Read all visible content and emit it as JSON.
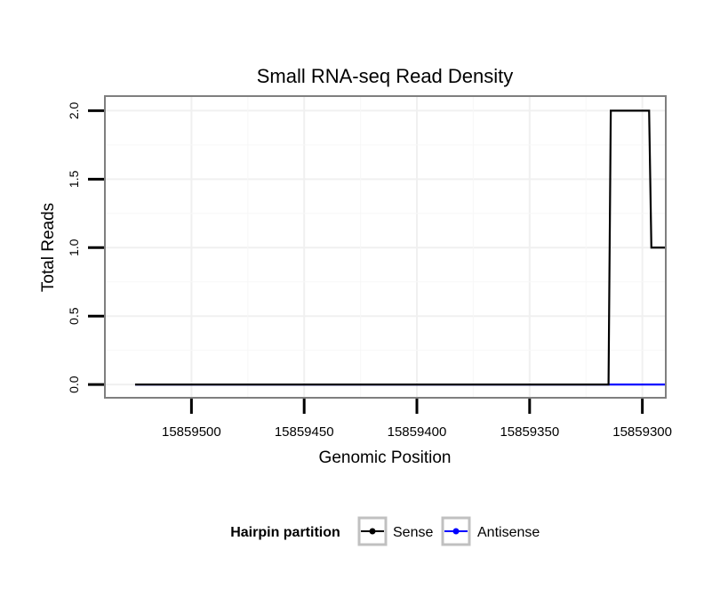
{
  "chart_data": {
    "type": "line",
    "title": "Small RNA-seq Read Density",
    "xlabel": "Genomic Position",
    "ylabel": "Total Reads",
    "x_reversed": true,
    "xlim": [
      15859538,
      15859290
    ],
    "ylim": [
      -0.09,
      2.1
    ],
    "x_ticks": [
      15859500,
      15859450,
      15859400,
      15859350,
      15859300
    ],
    "x_tick_labels": [
      "15859500",
      "15859450",
      "15859400",
      "15859350",
      "15859300"
    ],
    "y_ticks": [
      0,
      0.5,
      1,
      1.5,
      2
    ],
    "y_tick_labels": [
      "0.0",
      "0.5",
      "1.0",
      "1.5",
      "2.0"
    ],
    "grid": true,
    "legend": {
      "title": "Hairpin partition",
      "position": "bottom"
    },
    "series": [
      {
        "name": "Sense",
        "color": "#000000",
        "step": true,
        "x": [
          15859525,
          15859315,
          15859314,
          15859297,
          15859296,
          15859290
        ],
        "y": [
          0,
          0,
          2,
          2,
          1,
          1
        ]
      },
      {
        "name": "Antisense",
        "color": "#0000ff",
        "step": true,
        "x": [
          15859525,
          15859290
        ],
        "y": [
          0,
          0
        ]
      }
    ]
  }
}
